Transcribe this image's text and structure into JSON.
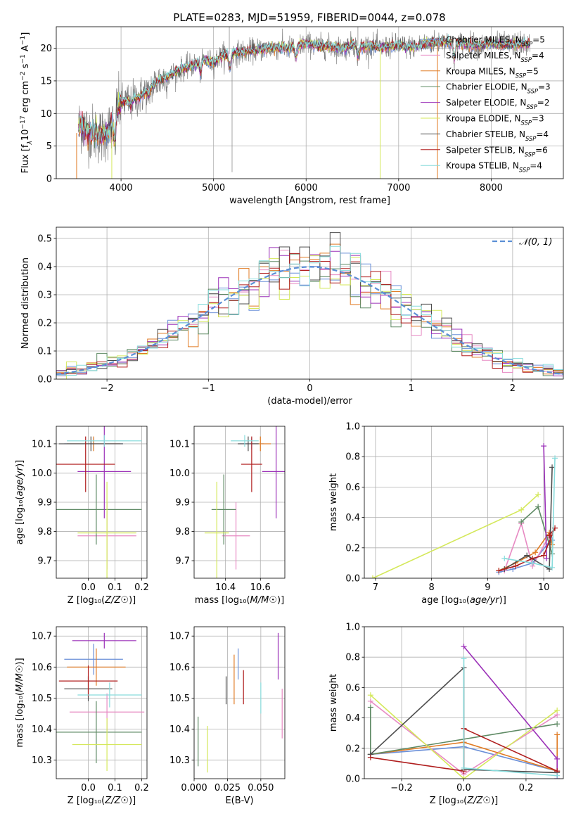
{
  "figure": {
    "title": "PLATE=0283, MJD=51959, FIBERID=0044, z=0.078"
  },
  "colors": {
    "chabrier_miles": "#6a8fd8",
    "salpeter_miles": "#e78ac3",
    "kroupa_miles": "#e07b24",
    "chabrier_elodie": "#5e8a64",
    "salpeter_elodie": "#9b30b8",
    "kroupa_elodie": "#d4e85a",
    "chabrier_stelib": "#4d4d4d",
    "salpeter_stelib": "#b01e1e",
    "kroupa_stelib": "#88dcdc",
    "data": "#7f7f7f"
  },
  "chart_data": [
    {
      "id": "spectrum",
      "type": "line",
      "xlabel": "wavelength [Angstrom, rest frame]",
      "ylabel": "Flux [f_λ10^-17 erg cm^-2 s^-1 A^-1]",
      "xlim": [
        3300,
        8780
      ],
      "ylim": [
        0,
        23.3
      ],
      "xticks": [
        4000,
        5000,
        6000,
        7000,
        8000
      ],
      "yticks": [
        0,
        5,
        10,
        15,
        20
      ],
      "legend_position": "upper-right",
      "legend": [
        {
          "label": "Chabrier MILES, N",
          "sub": "SSP",
          "post": "=5",
          "color_key": "chabrier_miles"
        },
        {
          "label": "Salpeter MILES, N",
          "sub": "SSP",
          "post": "=4",
          "color_key": "salpeter_miles"
        },
        {
          "label": "Kroupa MILES, N",
          "sub": "SSP",
          "post": "=5",
          "color_key": "kroupa_miles"
        },
        {
          "label": "Chabrier ELODIE, N",
          "sub": "SSP",
          "post": "=3",
          "color_key": "chabrier_elodie"
        },
        {
          "label": "Salpeter ELODIE, N",
          "sub": "SSP",
          "post": "=2",
          "color_key": "salpeter_elodie"
        },
        {
          "label": "Kroupa ELODIE, N",
          "sub": "SSP",
          "post": "=3",
          "color_key": "kroupa_elodie"
        },
        {
          "label": "Chabrier STELIB, N",
          "sub": "SSP",
          "post": "=4",
          "color_key": "chabrier_stelib"
        },
        {
          "label": "Salpeter STELIB, N",
          "sub": "SSP",
          "post": "=6",
          "color_key": "salpeter_stelib"
        },
        {
          "label": "Kroupa STELIB, N",
          "sub": "SSP",
          "post": "=4",
          "color_key": "kroupa_stelib"
        }
      ],
      "continuum_x": [
        3500,
        3560,
        3620,
        3700,
        3800,
        3900,
        3950,
        4000,
        4100,
        4200,
        4300,
        4400,
        4500,
        4600,
        4700,
        4800,
        4900,
        5000,
        5100,
        5200,
        5300,
        5400,
        5500,
        5600,
        5700,
        5800,
        5900,
        6000,
        6100,
        6200,
        6300,
        6400,
        6500,
        6600,
        6700,
        6800,
        6900,
        7000,
        7100,
        7200,
        7300,
        7400,
        7500,
        7600,
        7700,
        7800,
        7900,
        8000,
        8100,
        8200,
        8300,
        8400
      ],
      "continuum_y": [
        6.5,
        8.5,
        7.5,
        7.0,
        6.5,
        8.0,
        10.5,
        11.5,
        12.0,
        12.5,
        13.8,
        15.0,
        15.5,
        16.5,
        17.0,
        17.5,
        18.2,
        17.8,
        19.0,
        19.2,
        19.4,
        19.6,
        19.8,
        20.0,
        20.1,
        20.0,
        20.2,
        20.8,
        20.4,
        20.3,
        20.2,
        19.9,
        20.6,
        20.2,
        20.5,
        20.0,
        20.3,
        20.5,
        20.2,
        20.3,
        20.7,
        20.9,
        21.1,
        20.7,
        20.8,
        20.5,
        20.4,
        20.8,
        20.5,
        20.6,
        20.7,
        20.6
      ],
      "dips": [
        {
          "x": 3933,
          "y": 5.0
        },
        {
          "x": 4102,
          "y": 11.0
        },
        {
          "x": 4300,
          "y": 12.5
        },
        {
          "x": 4861,
          "y": 16.0
        },
        {
          "x": 5175,
          "y": 16.5
        },
        {
          "x": 5890,
          "y": 18.2
        },
        {
          "x": 6563,
          "y": 18.5
        },
        {
          "x": 7600,
          "y": 18.0
        }
      ]
    },
    {
      "id": "residuals",
      "type": "histogram",
      "xlabel": "(data-model)/error",
      "ylabel": "Normed distribution",
      "xlim": [
        -2.5,
        2.5
      ],
      "ylim": [
        0,
        0.54
      ],
      "xticks": [
        -2,
        -1,
        0,
        1,
        2
      ],
      "yticks": [
        0.0,
        0.1,
        0.2,
        0.3,
        0.4,
        0.5
      ],
      "bin_width": 0.1,
      "reference_label": "𝒩(0, 1)",
      "reference_color": "#5b8fd6",
      "legend_position": "upper-right"
    },
    {
      "id": "z-age",
      "type": "scatter",
      "xlabel": "Z [log₁₀(Z/Z☉)]",
      "ylabel": "age  [log₁₀(age/yr)]",
      "xlim": [
        -0.12,
        0.22
      ],
      "ylim": [
        9.64,
        10.16
      ],
      "xticks": [
        0.0,
        0.1,
        0.2
      ],
      "yticks": [
        9.7,
        9.8,
        9.9,
        10.0,
        10.1
      ],
      "points": [
        {
          "key": "chabrier_miles",
          "x": 0.02,
          "xerr": 0.11,
          "y": 10.1,
          "yerr": 0.02
        },
        {
          "key": "salpeter_miles",
          "x": 0.07,
          "xerr": 0.11,
          "y": 9.785,
          "yerr": 0.115
        },
        {
          "key": "kroupa_miles",
          "x": 0.02,
          "xerr": 0.1,
          "y": 10.1,
          "yerr": 0.025
        },
        {
          "key": "chabrier_elodie",
          "x": 0.03,
          "xerr": 0.17,
          "y": 9.875,
          "yerr": 0.12
        },
        {
          "key": "salpeter_elodie",
          "x": 0.06,
          "xerr": 0.1,
          "y": 10.005,
          "yerr": 0.16
        },
        {
          "key": "kroupa_elodie",
          "x": 0.07,
          "xerr": 0.11,
          "y": 9.795,
          "yerr": 0.175
        },
        {
          "key": "chabrier_stelib",
          "x": 0.01,
          "xerr": 0.12,
          "y": 10.1,
          "yerr": 0.025
        },
        {
          "key": "salpeter_stelib",
          "x": -0.01,
          "xerr": 0.11,
          "y": 10.03,
          "yerr": 0.095
        },
        {
          "key": "kroupa_stelib",
          "x": 0.06,
          "xerr": 0.14,
          "y": 10.11,
          "yerr": 0.02
        }
      ]
    },
    {
      "id": "mass-age",
      "type": "scatter",
      "xlabel": "mass [log₁₀(M/M☉)]",
      "ylabel": "",
      "xlim": [
        10.22,
        10.74
      ],
      "ylim": [
        9.64,
        10.16
      ],
      "xticks": [
        10.4,
        10.6
      ],
      "yticks": [
        9.7,
        9.8,
        9.9,
        10.0,
        10.1
      ],
      "points": [
        {
          "key": "chabrier_miles",
          "x": 10.55,
          "xerr": 0.07,
          "y": 10.1,
          "yerr": 0.02
        },
        {
          "key": "salpeter_miles",
          "x": 10.46,
          "xerr": 0.08,
          "y": 9.785,
          "yerr": 0.115
        },
        {
          "key": "kroupa_miles",
          "x": 10.6,
          "xerr": 0.06,
          "y": 10.1,
          "yerr": 0.025
        },
        {
          "key": "chabrier_elodie",
          "x": 10.39,
          "xerr": 0.07,
          "y": 9.875,
          "yerr": 0.12
        },
        {
          "key": "salpeter_elodie",
          "x": 10.69,
          "xerr": 0.08,
          "y": 10.005,
          "yerr": 0.16
        },
        {
          "key": "kroupa_elodie",
          "x": 10.35,
          "xerr": 0.07,
          "y": 9.795,
          "yerr": 0.175
        },
        {
          "key": "chabrier_stelib",
          "x": 10.53,
          "xerr": 0.06,
          "y": 10.1,
          "yerr": 0.025
        },
        {
          "key": "salpeter_stelib",
          "x": 10.55,
          "xerr": 0.06,
          "y": 10.03,
          "yerr": 0.095
        },
        {
          "key": "kroupa_stelib",
          "x": 10.51,
          "xerr": 0.08,
          "y": 10.11,
          "yerr": 0.02
        }
      ]
    },
    {
      "id": "weights-age",
      "type": "line",
      "xlabel": "age  [log₁₀(age/yr)]",
      "ylabel": "mass weight",
      "xlim": [
        6.8,
        10.35
      ],
      "ylim": [
        0,
        1
      ],
      "xticks": [
        7,
        8,
        9,
        10
      ],
      "yticks": [
        0.0,
        0.2,
        0.4,
        0.6,
        0.8,
        1.0
      ],
      "series": [
        {
          "key": "chabrier_miles",
          "x": [
            9.2,
            9.45,
            9.8,
            10.12,
            10.15
          ],
          "y": [
            0.04,
            0.06,
            0.1,
            0.25,
            0.25
          ]
        },
        {
          "key": "salpeter_miles",
          "x": [
            9.3,
            9.6,
            9.8,
            10.1
          ],
          "y": [
            0.05,
            0.36,
            0.08,
            0.28
          ]
        },
        {
          "key": "kroupa_miles",
          "x": [
            9.2,
            9.5,
            9.85,
            10.1,
            10.15
          ],
          "y": [
            0.05,
            0.1,
            0.17,
            0.3,
            0.22
          ]
        },
        {
          "key": "chabrier_elodie",
          "x": [
            9.6,
            9.9,
            10.15
          ],
          "y": [
            0.37,
            0.47,
            0.16
          ]
        },
        {
          "key": "salpeter_elodie",
          "x": [
            10.0,
            10.05
          ],
          "y": [
            0.87,
            0.13
          ]
        },
        {
          "key": "kroupa_elodie",
          "x": [
            6.95,
            9.6,
            9.9
          ],
          "y": [
            0.0,
            0.45,
            0.55
          ]
        },
        {
          "key": "chabrier_stelib",
          "x": [
            9.3,
            9.7,
            10.1,
            10.15
          ],
          "y": [
            0.06,
            0.15,
            0.06,
            0.73
          ]
        },
        {
          "key": "salpeter_stelib",
          "x": [
            9.2,
            9.5,
            9.8,
            10.0,
            10.2,
            10.1
          ],
          "y": [
            0.05,
            0.08,
            0.13,
            0.15,
            0.33,
            0.28
          ]
        },
        {
          "key": "kroupa_stelib",
          "x": [
            9.3,
            9.8,
            10.15,
            10.2
          ],
          "y": [
            0.13,
            0.1,
            0.07,
            0.79
          ]
        }
      ]
    },
    {
      "id": "z-mass",
      "type": "scatter",
      "xlabel": "Z [log₁₀(Z/Z☉)]",
      "ylabel": "mass [log₁₀(M/M☉)]",
      "xlim": [
        -0.12,
        0.22
      ],
      "ylim": [
        10.24,
        10.73
      ],
      "xticks": [
        0.0,
        0.1,
        0.2
      ],
      "yticks": [
        10.3,
        10.4,
        10.5,
        10.6,
        10.7
      ],
      "points": [
        {
          "key": "chabrier_miles",
          "x": 0.02,
          "xerr": 0.11,
          "y": 10.625,
          "yerr": 0.05
        },
        {
          "key": "salpeter_miles",
          "x": 0.07,
          "xerr": 0.14,
          "y": 10.455,
          "yerr": 0.06
        },
        {
          "key": "kroupa_miles",
          "x": 0.03,
          "xerr": 0.11,
          "y": 10.6,
          "yerr": 0.06
        },
        {
          "key": "chabrier_elodie",
          "x": 0.03,
          "xerr": 0.17,
          "y": 10.39,
          "yerr": 0.1
        },
        {
          "key": "salpeter_elodie",
          "x": 0.06,
          "xerr": 0.12,
          "y": 10.685,
          "yerr": 0.025
        },
        {
          "key": "kroupa_elodie",
          "x": 0.07,
          "xerr": 0.13,
          "y": 10.35,
          "yerr": 0.085
        },
        {
          "key": "chabrier_stelib",
          "x": 0.0,
          "xerr": 0.09,
          "y": 10.53,
          "yerr": 0.04
        },
        {
          "key": "salpeter_stelib",
          "x": 0.0,
          "xerr": 0.11,
          "y": 10.555,
          "yerr": 0.05
        },
        {
          "key": "kroupa_stelib",
          "x": 0.08,
          "xerr": 0.12,
          "y": 10.51,
          "yerr": 0.04
        }
      ]
    },
    {
      "id": "ebv-mass",
      "type": "scatter",
      "xlabel": "E(B-V)",
      "ylabel": "",
      "xlim": [
        0.0,
        0.068
      ],
      "ylim": [
        10.24,
        10.73
      ],
      "xticks": [
        0.0,
        0.025,
        0.05
      ],
      "xtick_labels": [
        "0.000",
        "0.025",
        "0.050"
      ],
      "yticks": [
        10.3,
        10.4,
        10.5,
        10.6,
        10.7
      ],
      "points": [
        {
          "key": "chabrier_miles",
          "x": 0.033,
          "y": 10.61,
          "yerr": 0.05
        },
        {
          "key": "salpeter_miles",
          "x": 0.066,
          "y": 10.45,
          "yerr": 0.08
        },
        {
          "key": "kroupa_miles",
          "x": 0.03,
          "y": 10.56,
          "yerr": 0.08
        },
        {
          "key": "chabrier_elodie",
          "x": 0.003,
          "y": 10.36,
          "yerr": 0.08
        },
        {
          "key": "salpeter_elodie",
          "x": 0.063,
          "y": 10.635,
          "yerr": 0.075
        },
        {
          "key": "kroupa_elodie",
          "x": 0.01,
          "y": 10.335,
          "yerr": 0.075
        },
        {
          "key": "chabrier_stelib",
          "x": 0.024,
          "y": 10.525,
          "yerr": 0.045
        },
        {
          "key": "salpeter_stelib",
          "x": 0.037,
          "y": 10.535,
          "yerr": 0.055
        },
        {
          "key": "kroupa_stelib",
          "x": 0.05,
          "y": 10.5,
          "yerr": 0.05
        }
      ]
    },
    {
      "id": "weights-z",
      "type": "line",
      "xlabel": "Z [log₁₀(Z/Z☉)]",
      "ylabel": "mass weight",
      "xlim": [
        -0.32,
        0.32
      ],
      "ylim": [
        0,
        1
      ],
      "xticks": [
        -0.2,
        0.0,
        0.2
      ],
      "yticks": [
        0.0,
        0.2,
        0.4,
        0.6,
        0.8,
        1.0
      ],
      "series": [
        {
          "key": "chabrier_miles",
          "x": [
            -0.3,
            0.0,
            0.3
          ],
          "y": [
            0.16,
            0.21,
            0.05
          ]
        },
        {
          "key": "salpeter_miles",
          "x": [
            -0.3,
            0.0,
            0.3
          ],
          "y": [
            0.51,
            0.03,
            0.42
          ]
        },
        {
          "key": "kroupa_miles",
          "x": [
            -0.3,
            0.0,
            0.3,
            0.3
          ],
          "y": [
            0.16,
            0.24,
            0.05,
            0.29
          ]
        },
        {
          "key": "chabrier_elodie",
          "x": [
            -0.3,
            -0.3,
            0.3
          ],
          "y": [
            0.47,
            0.16,
            0.36
          ]
        },
        {
          "key": "salpeter_elodie",
          "x": [
            0.0,
            0.3,
            0.3
          ],
          "y": [
            0.87,
            0.13,
            0.0
          ]
        },
        {
          "key": "kroupa_elodie",
          "x": [
            -0.3,
            0.0,
            0.3
          ],
          "y": [
            0.55,
            0.0,
            0.45
          ]
        },
        {
          "key": "chabrier_stelib",
          "x": [
            -0.3,
            0.0,
            0.0,
            0.3
          ],
          "y": [
            0.16,
            0.73,
            0.06,
            0.04
          ]
        },
        {
          "key": "salpeter_stelib",
          "x": [
            -0.3,
            0.0,
            0.0,
            0.3
          ],
          "y": [
            0.14,
            0.05,
            0.33,
            0.05
          ]
        },
        {
          "key": "kroupa_stelib",
          "x": [
            0.0,
            0.0,
            0.3
          ],
          "y": [
            0.79,
            0.07,
            0.02
          ]
        }
      ]
    }
  ]
}
